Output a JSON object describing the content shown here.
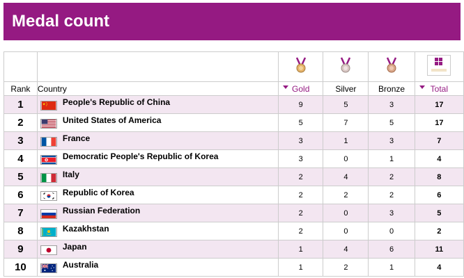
{
  "page": {
    "title": "Medal count"
  },
  "table": {
    "headers": {
      "rank": "Rank",
      "country": "Country",
      "gold": "Gold",
      "silver": "Silver",
      "bronze": "Bronze",
      "total": "Total"
    },
    "icons": {
      "gold": "gold-medal-icon",
      "silver": "silver-medal-icon",
      "bronze": "bronze-medal-icon",
      "total": "grid-view-icon"
    },
    "accent_color": "#951a82",
    "alt_row_color": "#f3e6f1",
    "rows": [
      {
        "rank": "1",
        "country": "People's Republic of China",
        "flag": "flag-china-icon",
        "gold": "9",
        "silver": "5",
        "bronze": "3",
        "total": "17"
      },
      {
        "rank": "2",
        "country": "United States of America",
        "flag": "flag-usa-icon",
        "gold": "5",
        "silver": "7",
        "bronze": "5",
        "total": "17"
      },
      {
        "rank": "3",
        "country": "France",
        "flag": "flag-france-icon",
        "gold": "3",
        "silver": "1",
        "bronze": "3",
        "total": "7"
      },
      {
        "rank": "4",
        "country": "Democratic People's Republic of Korea",
        "flag": "flag-north-korea-icon",
        "gold": "3",
        "silver": "0",
        "bronze": "1",
        "total": "4"
      },
      {
        "rank": "5",
        "country": "Italy",
        "flag": "flag-italy-icon",
        "gold": "2",
        "silver": "4",
        "bronze": "2",
        "total": "8"
      },
      {
        "rank": "6",
        "country": "Republic of Korea",
        "flag": "flag-south-korea-icon",
        "gold": "2",
        "silver": "2",
        "bronze": "2",
        "total": "6"
      },
      {
        "rank": "7",
        "country": "Russian Federation",
        "flag": "flag-russia-icon",
        "gold": "2",
        "silver": "0",
        "bronze": "3",
        "total": "5"
      },
      {
        "rank": "8",
        "country": "Kazakhstan",
        "flag": "flag-kazakhstan-icon",
        "gold": "2",
        "silver": "0",
        "bronze": "0",
        "total": "2"
      },
      {
        "rank": "9",
        "country": "Japan",
        "flag": "flag-japan-icon",
        "gold": "1",
        "silver": "4",
        "bronze": "6",
        "total": "11"
      },
      {
        "rank": "10",
        "country": "Australia",
        "flag": "flag-australia-icon",
        "gold": "1",
        "silver": "2",
        "bronze": "1",
        "total": "4"
      }
    ]
  }
}
